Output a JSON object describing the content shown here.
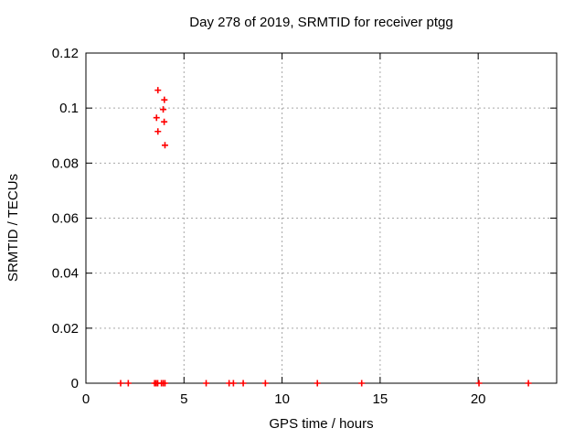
{
  "chart": {
    "title": "Day 278 of 2019, SRMTID for receiver ptgg",
    "xlabel": "GPS time / hours",
    "ylabel": "SRMTID / TECUs"
  },
  "chart_data": {
    "type": "scatter",
    "title": "Day 278 of 2019, SRMTID for receiver ptgg",
    "xlabel": "GPS time / hours",
    "ylabel": "SRMTID / TECUs",
    "xlim": [
      0,
      24
    ],
    "ylim": [
      0,
      0.12
    ],
    "xticks": {
      "values": [
        0,
        5,
        10,
        15,
        20
      ],
      "labels": [
        "0",
        "5",
        "10",
        "15",
        "20"
      ]
    },
    "yticks": {
      "values": [
        0,
        0.02,
        0.04,
        0.06,
        0.08,
        0.1,
        0.12
      ],
      "labels": [
        "0",
        "0.02",
        "0.04",
        "0.06",
        "0.08",
        "0.1",
        "0.12"
      ]
    },
    "grid": true,
    "legend": "none",
    "colors": {
      "marker": "#ff0000",
      "grid": "#a6a6a6",
      "border": "#000000",
      "background": "#ffffff"
    },
    "marker": {
      "shape": "plus",
      "size": 7
    },
    "series": [
      {
        "name": "SRMTID",
        "points": [
          [
            3.67,
            0.1065
          ],
          [
            4.0,
            0.103
          ],
          [
            3.94,
            0.0995
          ],
          [
            3.6,
            0.0965
          ],
          [
            3.99,
            0.095
          ],
          [
            3.67,
            0.0915
          ],
          [
            4.03,
            0.0865
          ],
          [
            1.77,
            0
          ],
          [
            2.16,
            0
          ],
          [
            3.5,
            0
          ],
          [
            3.58,
            0
          ],
          [
            3.66,
            0
          ],
          [
            3.85,
            0
          ],
          [
            3.94,
            0
          ],
          [
            4.03,
            0
          ],
          [
            6.13,
            0
          ],
          [
            7.3,
            0
          ],
          [
            7.52,
            0
          ],
          [
            8.02,
            0
          ],
          [
            9.15,
            0
          ],
          [
            11.8,
            0
          ],
          [
            14.06,
            0
          ],
          [
            20.04,
            0
          ],
          [
            22.56,
            0
          ]
        ]
      }
    ]
  }
}
